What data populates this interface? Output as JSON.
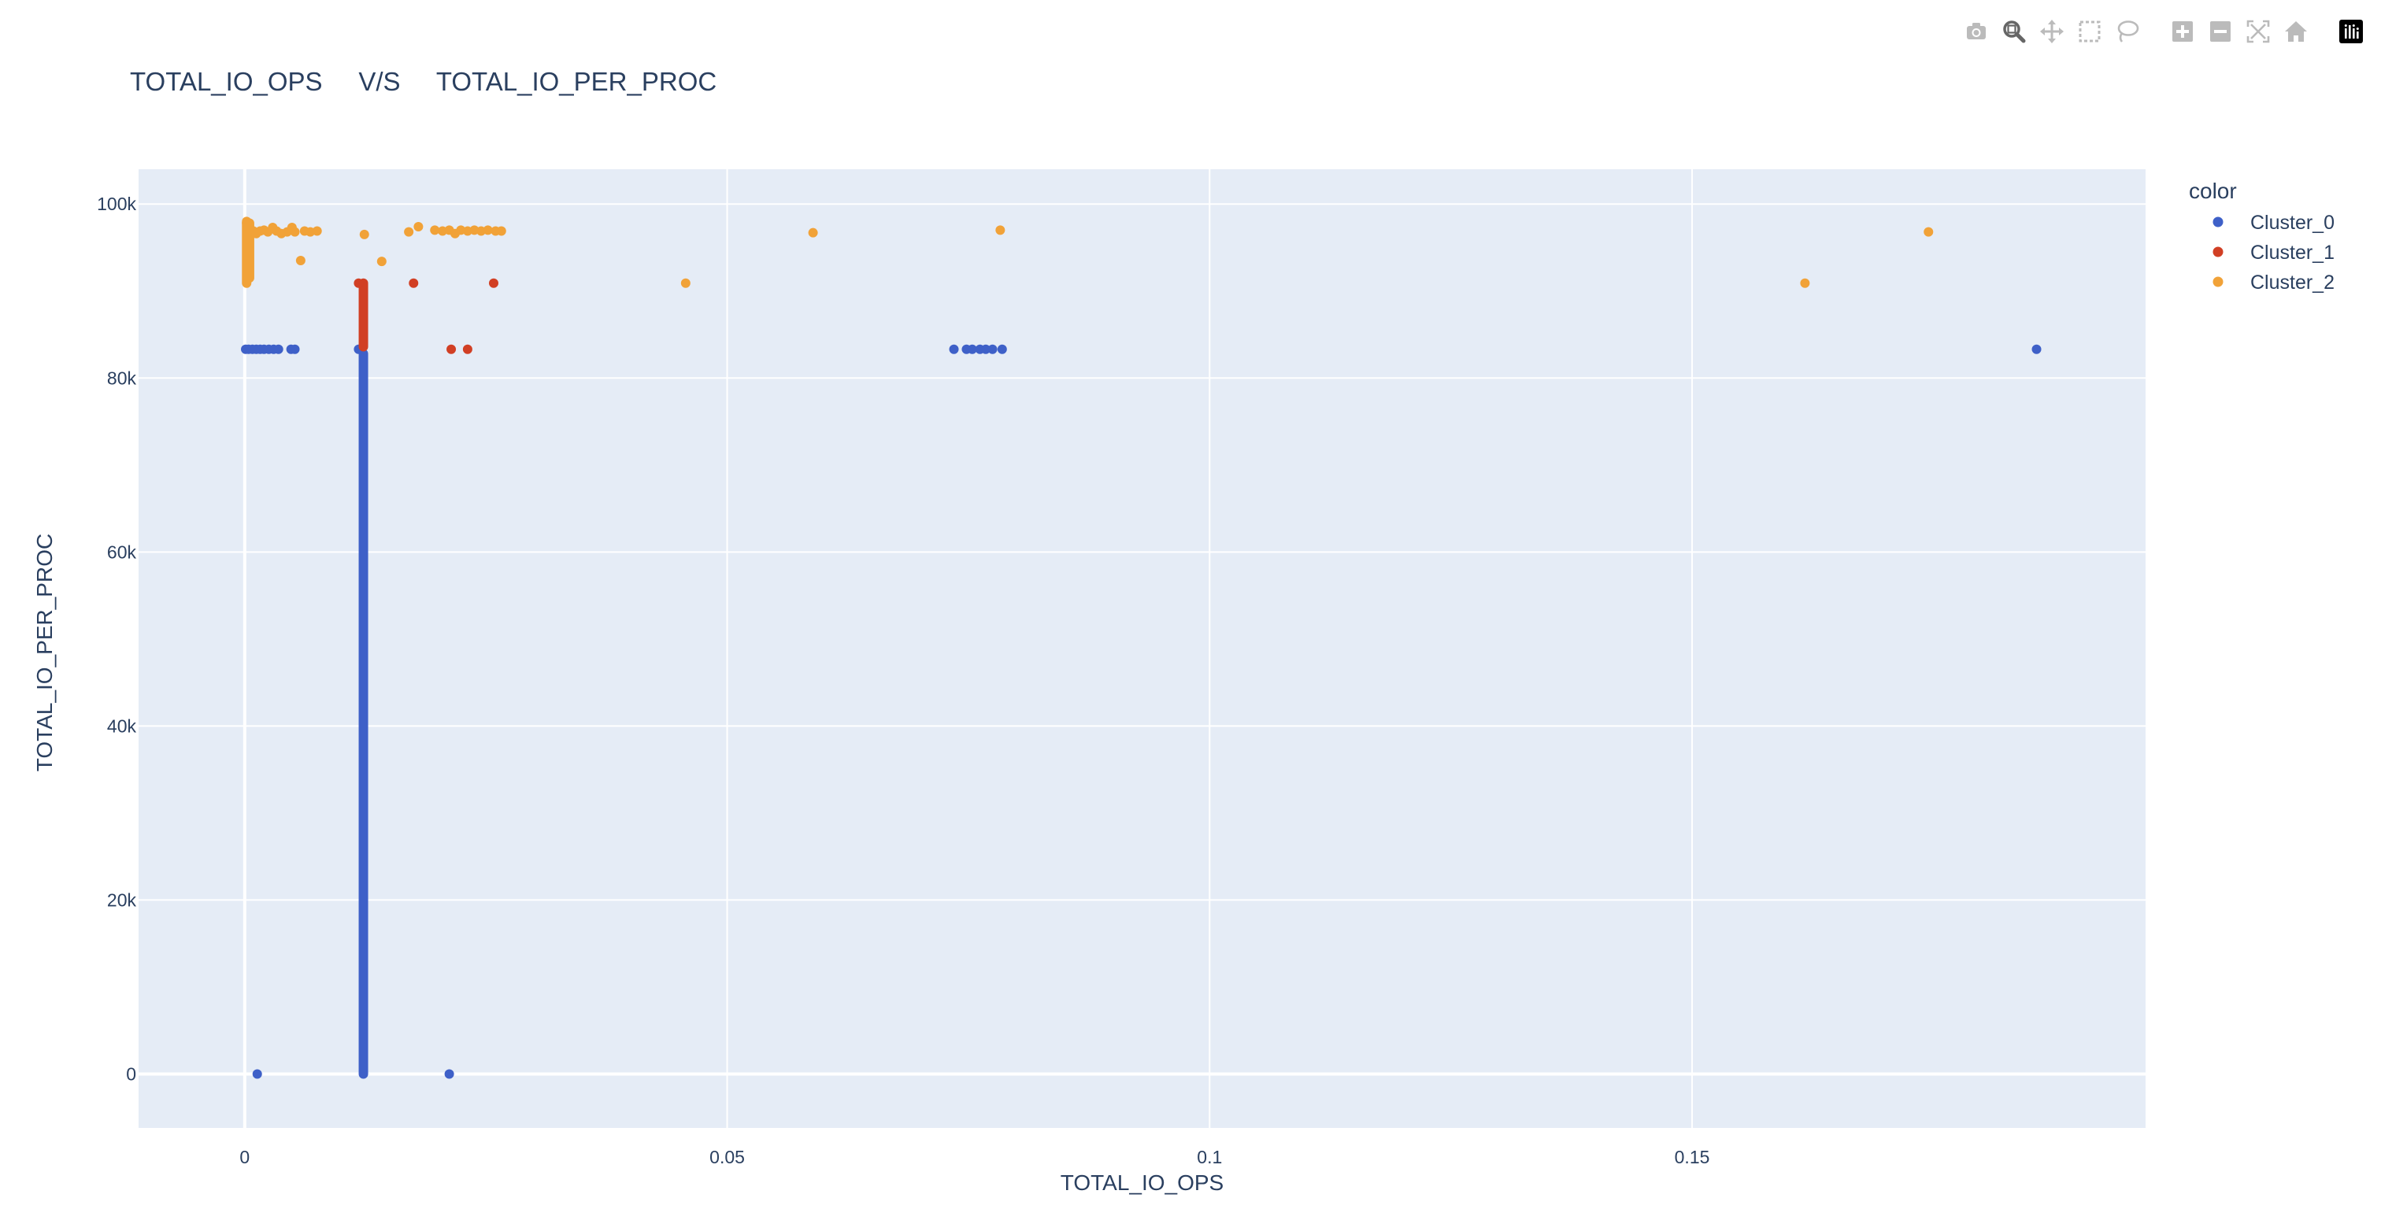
{
  "modebar": {
    "buttons": [
      {
        "name": "camera-icon",
        "title": "Download plot as a png"
      },
      {
        "name": "zoom-icon",
        "title": "Zoom",
        "active": true
      },
      {
        "name": "pan-icon",
        "title": "Pan"
      },
      {
        "name": "box-select-icon",
        "title": "Box Select"
      },
      {
        "name": "lasso-select-icon",
        "title": "Lasso Select"
      },
      {
        "name": "zoom-in-icon",
        "title": "Zoom in"
      },
      {
        "name": "zoom-out-icon",
        "title": "Zoom out"
      },
      {
        "name": "autoscale-icon",
        "title": "Autoscale"
      },
      {
        "name": "reset-axes-icon",
        "title": "Reset axes"
      },
      {
        "name": "plotly-logo-icon",
        "title": "Produced with Plotly"
      }
    ]
  },
  "colors": {
    "plot_bg": "#E5ECF6",
    "grid": "#FFFFFF",
    "text": "#2A3F5F",
    "Cluster_0": "#3E60C8",
    "Cluster_1": "#D13F24",
    "Cluster_2": "#F1A238",
    "modebar_icon": "#BBBBBB",
    "modebar_active": "#666666"
  },
  "chart_data": {
    "type": "scatter",
    "title": "TOTAL_IO_OPS     V/S     TOTAL_IO_PER_PROC",
    "xlabel": "TOTAL_IO_OPS",
    "ylabel": "TOTAL_IO_PER_PROC",
    "xlim": [
      -0.011,
      0.197
    ],
    "ylim": [
      -6200,
      104000
    ],
    "x_ticks": [
      0,
      0.05,
      0.1,
      0.15
    ],
    "x_tick_labels": [
      "0",
      "0.05",
      "0.1",
      "0.15"
    ],
    "y_ticks": [
      0,
      20000,
      40000,
      60000,
      80000,
      100000
    ],
    "y_tick_labels": [
      "0",
      "20k",
      "40k",
      "60k",
      "80k",
      "100k"
    ],
    "grid": true,
    "legend": {
      "title": "color",
      "placement": "right"
    },
    "series": [
      {
        "name": "Cluster_0",
        "points": [
          [
            0.0001,
            83300
          ],
          [
            0.0004,
            83300
          ],
          [
            0.0008,
            83300
          ],
          [
            0.0012,
            83300
          ],
          [
            0.0016,
            83300
          ],
          [
            0.002,
            83300
          ],
          [
            0.0025,
            83300
          ],
          [
            0.003,
            83300
          ],
          [
            0.0035,
            83300
          ],
          [
            0.0048,
            83300
          ],
          [
            0.0052,
            83300
          ],
          [
            0.0118,
            83300
          ],
          [
            0.0735,
            83300
          ],
          [
            0.0748,
            83300
          ],
          [
            0.0754,
            83300
          ],
          [
            0.0762,
            83300
          ],
          [
            0.0768,
            83300
          ],
          [
            0.0775,
            83300
          ],
          [
            0.0785,
            83300
          ],
          [
            0.1857,
            83300
          ],
          [
            0.0013,
            0
          ],
          [
            0.0212,
            0
          ]
        ],
        "vlines": [
          {
            "x": 0.0123,
            "y_from": 0,
            "y_to": 82800
          }
        ]
      },
      {
        "name": "Cluster_1",
        "points": [
          [
            0.0118,
            90900
          ],
          [
            0.0175,
            90900
          ],
          [
            0.0258,
            90900
          ],
          [
            0.0214,
            83300
          ],
          [
            0.0231,
            83300
          ]
        ],
        "vlines": [
          {
            "x": 0.0123,
            "y_from": 83600,
            "y_to": 90900
          }
        ]
      },
      {
        "name": "Cluster_2",
        "points": [
          [
            0.0002,
            97800
          ],
          [
            0.0004,
            97400
          ],
          [
            0.0006,
            97100
          ],
          [
            0.0009,
            96900
          ],
          [
            0.0012,
            96600
          ],
          [
            0.0016,
            96900
          ],
          [
            0.002,
            97000
          ],
          [
            0.0024,
            96800
          ],
          [
            0.0029,
            97300
          ],
          [
            0.0033,
            96900
          ],
          [
            0.0038,
            96600
          ],
          [
            0.0044,
            96800
          ],
          [
            0.0049,
            97300
          ],
          [
            0.0052,
            96800
          ],
          [
            0.0058,
            93500
          ],
          [
            0.0062,
            96900
          ],
          [
            0.0068,
            96800
          ],
          [
            0.0075,
            96900
          ],
          [
            0.0124,
            96500
          ],
          [
            0.0142,
            93400
          ],
          [
            0.017,
            96800
          ],
          [
            0.018,
            97400
          ],
          [
            0.0197,
            97000
          ],
          [
            0.0205,
            96900
          ],
          [
            0.0212,
            97000
          ],
          [
            0.0218,
            96600
          ],
          [
            0.0224,
            97000
          ],
          [
            0.0231,
            96900
          ],
          [
            0.0238,
            97000
          ],
          [
            0.0245,
            96900
          ],
          [
            0.0252,
            97000
          ],
          [
            0.026,
            96900
          ],
          [
            0.0266,
            96900
          ],
          [
            0.0457,
            90900
          ],
          [
            0.0589,
            96700
          ],
          [
            0.0783,
            97000
          ],
          [
            0.1617,
            90900
          ],
          [
            0.1745,
            96800
          ]
        ],
        "vlines": [
          {
            "x": 0.0002,
            "y_from": 90900,
            "y_to": 98000
          },
          {
            "x": 0.0005,
            "y_from": 91500,
            "y_to": 97800
          }
        ]
      }
    ]
  }
}
